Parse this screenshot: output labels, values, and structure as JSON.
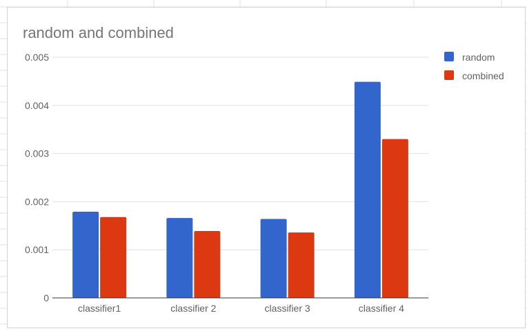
{
  "colors": {
    "random": "#3366cc",
    "combined": "#dc3912",
    "gridline": "#e0e0e0",
    "axis": "#333333",
    "sheet_grid": "#e2e2e2"
  },
  "chart_data": {
    "type": "bar",
    "title": "random and combined",
    "xlabel": "",
    "ylabel": "",
    "categories": [
      "classifier1",
      "classifier 2",
      "classifier 3",
      "classifier 4"
    ],
    "series": [
      {
        "name": "random",
        "color": "#3366cc",
        "values": [
          0.00179,
          0.00166,
          0.00164,
          0.00449
        ]
      },
      {
        "name": "combined",
        "color": "#dc3912",
        "values": [
          0.00168,
          0.00139,
          0.00136,
          0.0033
        ]
      }
    ],
    "ylim": [
      0,
      0.005
    ],
    "yticks": [
      "0",
      "0.001",
      "0.002",
      "0.003",
      "0.004",
      "0.005"
    ],
    "grid": true,
    "legend": "right"
  }
}
